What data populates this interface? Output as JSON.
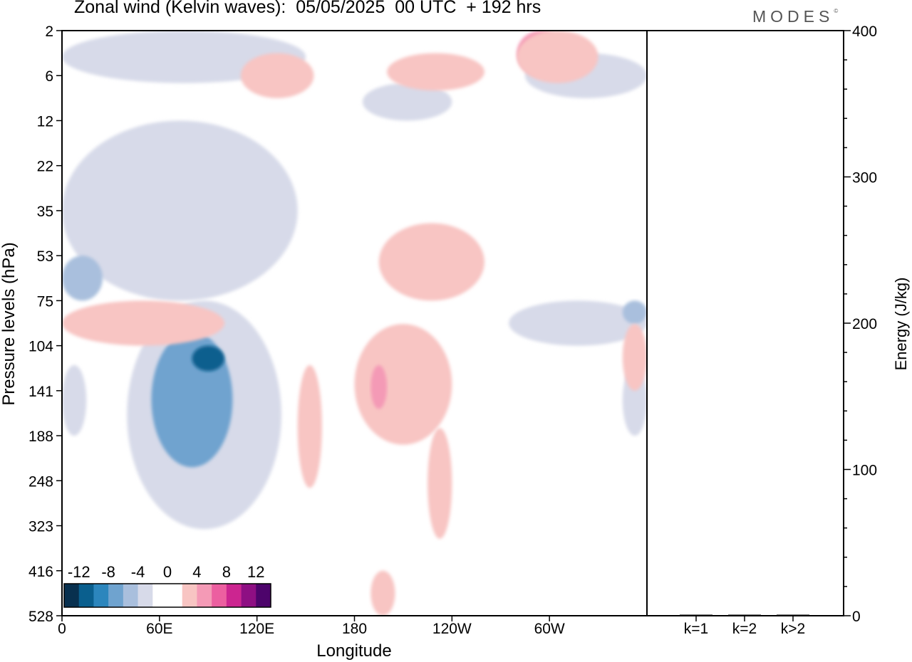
{
  "header": {
    "title": "Zonal wind (Kelvin waves):  05/05/2025  00 UTC  + 192 hrs",
    "logo": "MODES",
    "logo_mark": "©"
  },
  "chart_data": [
    {
      "type": "heatmap",
      "xlabel": "Longitude",
      "ylabel": "Pressure levels (hPa)",
      "x_ticks": [
        {
          "lon": 0,
          "label": "0"
        },
        {
          "lon": 60,
          "label": "60E"
        },
        {
          "lon": 120,
          "label": "120E"
        },
        {
          "lon": 180,
          "label": "180"
        },
        {
          "lon": 240,
          "label": "120W"
        },
        {
          "lon": 300,
          "label": "60W"
        }
      ],
      "xlim": [
        0,
        360
      ],
      "y_levels": [
        "2",
        "6",
        "12",
        "22",
        "35",
        "53",
        "75",
        "104",
        "141",
        "188",
        "248",
        "323",
        "416",
        "528"
      ],
      "colorbar": {
        "labels": [
          "-12",
          "-8",
          "-4",
          "0",
          "4",
          "8",
          "12"
        ],
        "colors": [
          "#08304f",
          "#0a5f8e",
          "#2c86bd",
          "#6fa3cf",
          "#a9bfdd",
          "#d7dae9",
          "#ffffff",
          "#ffffff",
          "#f8c5c3",
          "#f49ab6",
          "#ec5fa0",
          "#cc2590",
          "#8e0f83",
          "#4d046b"
        ]
      },
      "features": [
        {
          "kind": "negative",
          "level": 1,
          "lon": [
            40,
            135
          ],
          "p": [
            75,
            330
          ]
        },
        {
          "kind": "negative",
          "level": 3,
          "lon": [
            55,
            105
          ],
          "p": [
            95,
            230
          ]
        },
        {
          "kind": "negative",
          "level": 5,
          "lon": [
            80,
            100
          ],
          "p": [
            104,
            125
          ]
        },
        {
          "kind": "negative",
          "level": 1,
          "lon": [
            0,
            145
          ],
          "p": [
            12,
            75
          ]
        },
        {
          "kind": "negative",
          "level": 2,
          "lon": [
            0,
            25
          ],
          "p": [
            53,
            75
          ]
        },
        {
          "kind": "negative",
          "level": 1,
          "lon": [
            0,
            15
          ],
          "p": [
            120,
            188
          ]
        },
        {
          "kind": "negative",
          "level": 1,
          "lon": [
            275,
            360
          ],
          "p": [
            75,
            104
          ]
        },
        {
          "kind": "negative",
          "level": 2,
          "lon": [
            345,
            360
          ],
          "p": [
            75,
            90
          ]
        },
        {
          "kind": "negative",
          "level": 1,
          "lon": [
            345,
            360
          ],
          "p": [
            120,
            188
          ]
        },
        {
          "kind": "negative",
          "level": 1,
          "lon": [
            0,
            150
          ],
          "p": [
            2,
            7
          ]
        },
        {
          "kind": "negative",
          "level": 1,
          "lon": [
            285,
            360
          ],
          "p": [
            4,
            9
          ]
        },
        {
          "kind": "negative",
          "level": 1,
          "lon": [
            185,
            240
          ],
          "p": [
            7,
            12
          ]
        },
        {
          "kind": "positive",
          "level": 1,
          "lon": [
            0,
            100
          ],
          "p": [
            75,
            104
          ]
        },
        {
          "kind": "positive",
          "level": 1,
          "lon": [
            180,
            240
          ],
          "p": [
            90,
            200
          ]
        },
        {
          "kind": "positive",
          "level": 2,
          "lon": [
            190,
            200
          ],
          "p": [
            120,
            160
          ]
        },
        {
          "kind": "positive",
          "level": 1,
          "lon": [
            145,
            160
          ],
          "p": [
            120,
            260
          ]
        },
        {
          "kind": "positive",
          "level": 1,
          "lon": [
            225,
            240
          ],
          "p": [
            180,
            350
          ]
        },
        {
          "kind": "positive",
          "level": 1,
          "lon": [
            190,
            205
          ],
          "p": [
            416,
            528
          ]
        },
        {
          "kind": "positive",
          "level": 1,
          "lon": [
            345,
            360
          ],
          "p": [
            90,
            141
          ]
        },
        {
          "kind": "positive",
          "level": 1,
          "lon": [
            200,
            260
          ],
          "p": [
            4,
            8
          ]
        },
        {
          "kind": "positive",
          "level": 2,
          "lon": [
            280,
            310
          ],
          "p": [
            2,
            6
          ]
        },
        {
          "kind": "positive",
          "level": 1,
          "lon": [
            280,
            330
          ],
          "p": [
            2,
            7
          ]
        },
        {
          "kind": "positive",
          "level": 1,
          "lon": [
            110,
            155
          ],
          "p": [
            4,
            9
          ]
        },
        {
          "kind": "positive",
          "level": 1,
          "lon": [
            195,
            260
          ],
          "p": [
            40,
            75
          ]
        }
      ]
    },
    {
      "type": "bar",
      "ylabel": "Energy (J/kg)",
      "categories": [
        "k=1",
        "k=2",
        "k>2"
      ],
      "values": [
        0.5,
        0.2,
        0.2
      ],
      "ylim": [
        0,
        400
      ],
      "y_ticks": [
        "0",
        "100",
        "200",
        "300",
        "400"
      ]
    }
  ]
}
